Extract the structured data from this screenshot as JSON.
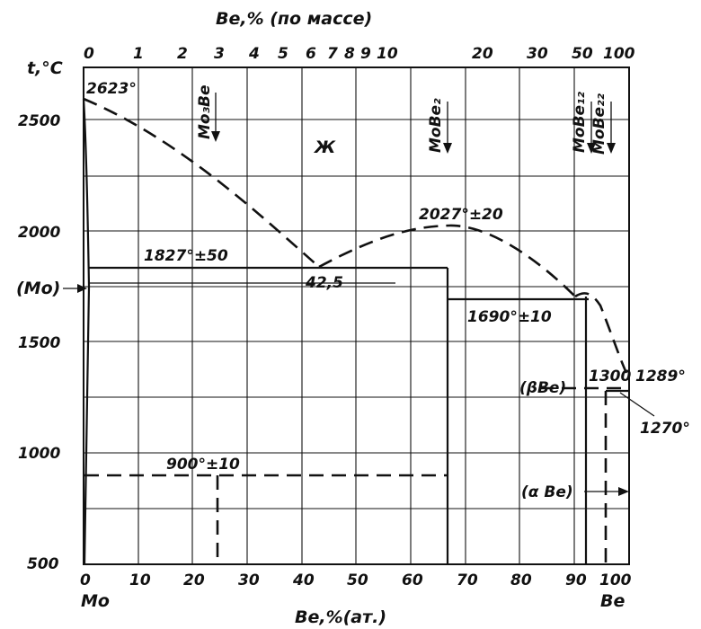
{
  "diagram": {
    "top_axis_title": "Be,% (по массе)",
    "bottom_axis_title": "Be,%(ат.)",
    "y_axis_title": "t,°C",
    "top_ticks": [
      "0",
      "1",
      "2",
      "3",
      "4",
      "5",
      "6",
      "7",
      "8",
      "9",
      "10",
      "20",
      "30",
      "50",
      "100"
    ],
    "bottom_ticks": [
      "0",
      "10",
      "20",
      "30",
      "40",
      "50",
      "60",
      "70",
      "80",
      "90",
      "100"
    ],
    "y_ticks": [
      "500",
      "1000",
      "1500",
      "2000",
      "2500"
    ],
    "left_element": "Mo",
    "right_element": "Be",
    "phase_labels": {
      "liquid": "Ж",
      "mo_solid": "(Mo)",
      "beta_be": "(βBe)",
      "alpha_be": "(α Be)"
    },
    "compounds": {
      "mo3be": "Mo₃Be",
      "mobe2": "MoBe₂",
      "mobe12": "MoBe₁₂",
      "mobe22": "MoBe₂₂"
    },
    "temperatures": {
      "mo_melting": "2623°",
      "eutectic": "1827°±50",
      "eutectic_comp": "42,5",
      "mobe2_melting": "2027°±20",
      "peritectic": "1690°±10",
      "mo3be_reaction": "900°±10",
      "t1300": "1300",
      "be_melting": "1289°",
      "t1270": "1270°"
    }
  }
}
